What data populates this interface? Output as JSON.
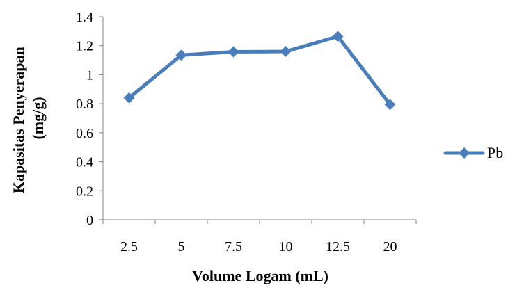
{
  "chart_data": {
    "type": "line",
    "categories": [
      "2.5",
      "5",
      "7.5",
      "10",
      "12.5",
      "20"
    ],
    "series": [
      {
        "name": "Pb",
        "values": [
          0.84,
          1.135,
          1.158,
          1.16,
          1.264,
          0.794
        ],
        "color": "#4a7ebb",
        "marker": "diamond"
      }
    ],
    "xlabel": "Volume Logam (mL)",
    "ylabel_lines": [
      "Kapasitas Penyerapan",
      "(mg/g)"
    ],
    "ylim": [
      0,
      1.4
    ],
    "yticks": [
      "0",
      "0.2",
      "0.4",
      "0.6",
      "0.8",
      "1",
      "1.2",
      "1.4"
    ],
    "grid": false,
    "legend_position": "right"
  }
}
